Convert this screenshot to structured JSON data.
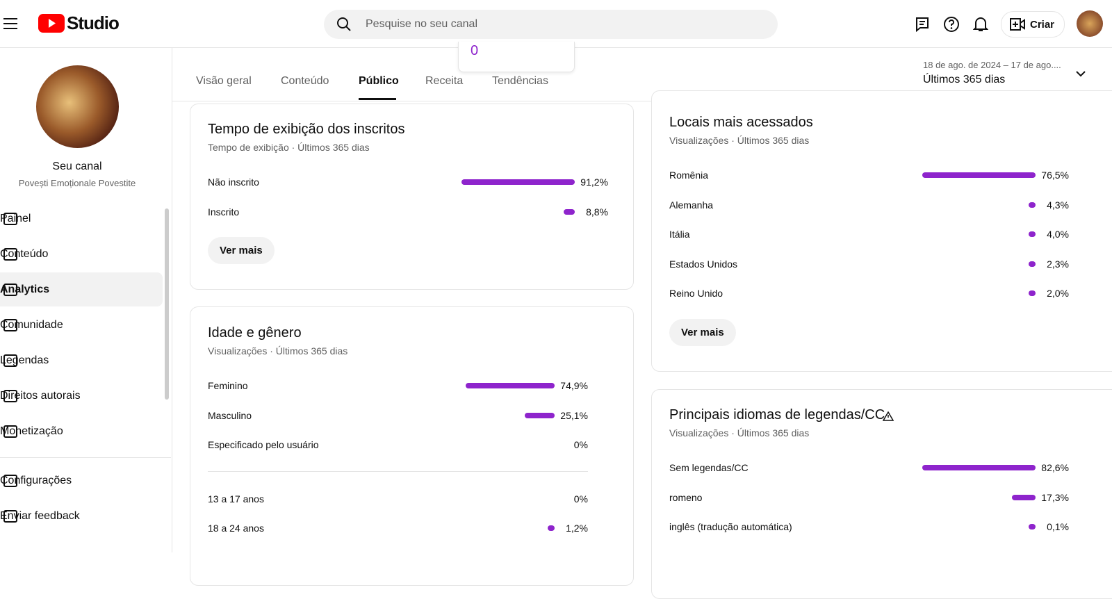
{
  "header": {
    "logo": "Studio",
    "search_placeholder": "Pesquise no seu canal",
    "create": "Criar"
  },
  "sidebar": {
    "channel_title": "Seu canal",
    "channel_name": "Povești Emoționale Povestite",
    "items": [
      "Painel",
      "Conteúdo",
      "Analytics",
      "Comunidade",
      "Legendas",
      "Direitos autorais",
      "Monetização"
    ],
    "footer_items": [
      "Configurações",
      "Enviar feedback"
    ]
  },
  "tabs": [
    "Visão geral",
    "Conteúdo",
    "Público",
    "Receita",
    "Tendências"
  ],
  "popup_value": "0",
  "date_range": {
    "dates": "18 de ago. de 2024 – 17 de ago....",
    "label": "Últimos 365 dias"
  },
  "cards": [
    {
      "title": "Tempo de exibição dos inscritos",
      "subtitle": "Tempo de exibição · Últimos 365 dias",
      "rows": [
        {
          "label": "Não inscrito",
          "value": 91.2,
          "value_label": "91,2%"
        },
        {
          "label": "Inscrito",
          "value": 8.8,
          "value_label": "8,8%"
        }
      ],
      "button": "Ver mais"
    },
    {
      "title": "Idade e gênero",
      "subtitle": "Visualizações · Últimos 365 dias",
      "rows": [
        {
          "label": "Feminino",
          "value": 74.9,
          "value_label": "74,9%"
        },
        {
          "label": "Masculino",
          "value": 25.1,
          "value_label": "25,1%"
        },
        {
          "label": "Especificado pelo usuário",
          "value": 0,
          "value_label": "0%"
        }
      ],
      "age_rows": [
        {
          "label": "13 a 17 anos",
          "value": 0,
          "value_label": "0%"
        },
        {
          "label": "18 a 24 anos",
          "value": 1.2,
          "value_label": "1,2%"
        }
      ]
    },
    {
      "title": "Locais mais acessados",
      "subtitle": "Visualizações · Últimos 365 dias",
      "rows": [
        {
          "label": "Romênia",
          "value": 76.5,
          "value_label": "76,5%"
        },
        {
          "label": "Alemanha",
          "value": 4.3,
          "value_label": "4,3%"
        },
        {
          "label": "Itália",
          "value": 4.0,
          "value_label": "4,0%"
        },
        {
          "label": "Estados Unidos",
          "value": 2.3,
          "value_label": "2,3%"
        },
        {
          "label": "Reino Unido",
          "value": 2.0,
          "value_label": "2,0%"
        }
      ],
      "button": "Ver mais"
    },
    {
      "title": "Principais idiomas de legendas/CC",
      "subtitle": "Visualizações · Últimos 365 dias",
      "rows": [
        {
          "label": "Sem legendas/CC",
          "value": 82.6,
          "value_label": "82,6%"
        },
        {
          "label": "romeno",
          "value": 17.3,
          "value_label": "17,3%"
        },
        {
          "label": "inglês (tradução automática)",
          "value": 0.1,
          "value_label": "0,1%"
        }
      ]
    }
  ]
}
